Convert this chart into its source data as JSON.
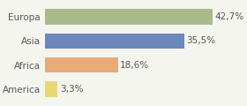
{
  "categories": [
    "Europa",
    "Asia",
    "Africa",
    "America"
  ],
  "values": [
    42.7,
    35.5,
    18.6,
    3.3
  ],
  "labels": [
    "42,7%",
    "35,5%",
    "18,6%",
    "3,3%"
  ],
  "bar_colors": [
    "#a8bb8a",
    "#6b87bb",
    "#e8ab78",
    "#e8d870"
  ],
  "background_color": "#f5f5f0",
  "xlim": [
    0,
    50
  ],
  "bar_height": 0.65,
  "label_fontsize": 7.5,
  "category_fontsize": 7.5
}
